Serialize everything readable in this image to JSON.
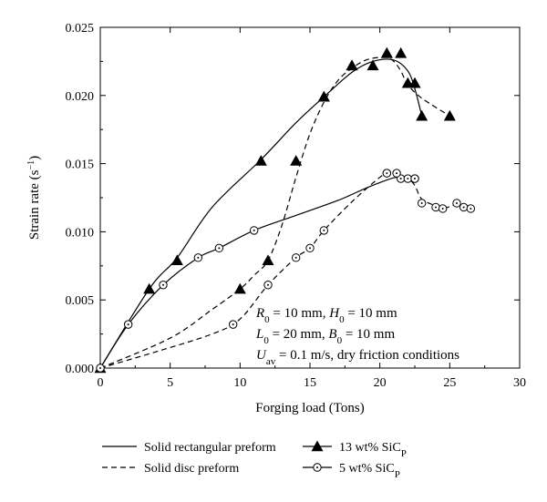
{
  "chart_data": {
    "type": "line",
    "xlabel": "Forging load (Tons)",
    "ylabel": "Strain rate (s",
    "ylabel_sup": "−1",
    "ylabel_close": ")",
    "xlim": [
      0,
      30
    ],
    "ylim": [
      0,
      0.025
    ],
    "xticks": [
      0,
      5,
      10,
      15,
      20,
      25,
      30
    ],
    "xtick_labels": [
      "0",
      "5",
      "10",
      "15",
      "20",
      "25",
      "30"
    ],
    "yticks": [
      0,
      0.005,
      0.01,
      0.015,
      0.02,
      0.025
    ],
    "ytick_labels": [
      "0.000",
      "0.005",
      "0.010",
      "0.015",
      "0.020",
      "0.025"
    ],
    "grid": false,
    "legend_position": "bottom",
    "markers": [
      {
        "name": "13 wt% SiC",
        "name_sub": "P",
        "marker": "filled-triangle",
        "x": [
          0,
          3.5,
          5.5,
          11.5,
          16,
          18,
          19.5,
          20.5,
          22,
          22.5,
          23,
          10,
          12,
          14,
          16,
          18,
          20.5,
          21.5,
          22,
          22.5,
          25
        ],
        "y": [
          0,
          0.0058,
          0.0079,
          0.0152,
          0.0199,
          0.0222,
          0.0222,
          0.0231,
          0.0209,
          0.0209,
          0.0185,
          0.0058,
          0.0079,
          0.0152,
          0.0199,
          0.0222,
          0.0231,
          0.0231,
          0.0209,
          0.0209,
          0.0185
        ]
      },
      {
        "name": "5 wt% SiC",
        "name_sub": "P",
        "marker": "open-circle-dot",
        "x": [
          0,
          2,
          4.5,
          7,
          8.5,
          11,
          20.5,
          21.5,
          22.5,
          9.5,
          12,
          14,
          15,
          16,
          20.5,
          21.2,
          22,
          22.5,
          23,
          24,
          24.5,
          25.5,
          26,
          26.5
        ],
        "y": [
          0,
          0.0032,
          0.0061,
          0.0081,
          0.0088,
          0.0101,
          0.0143,
          0.0139,
          0.0139,
          0.0032,
          0.0061,
          0.0081,
          0.0088,
          0.0101,
          0.0143,
          0.0143,
          0.0139,
          0.0139,
          0.0121,
          0.0118,
          0.0117,
          0.0121,
          0.0118,
          0.0117
        ]
      }
    ],
    "curves": [
      {
        "name": "Solid rectangular preform",
        "style": "solid",
        "x": [
          0,
          3.5,
          5.5,
          8,
          11.5,
          14,
          16,
          18,
          19.5,
          21,
          22,
          22.5,
          23
        ],
        "y": [
          0,
          0.0058,
          0.0081,
          0.0118,
          0.0153,
          0.018,
          0.0199,
          0.0217,
          0.0225,
          0.0226,
          0.0218,
          0.0205,
          0.0185
        ]
      },
      {
        "name": "Solid disc preform",
        "style": "dashed",
        "x": [
          0,
          5,
          8,
          10,
          11,
          12,
          13,
          14,
          15,
          16,
          17,
          18,
          19,
          20,
          20.5,
          21,
          21.5,
          22,
          23,
          25
        ],
        "y": [
          0,
          0.0022,
          0.0043,
          0.0058,
          0.0068,
          0.0079,
          0.0105,
          0.014,
          0.0172,
          0.0195,
          0.0211,
          0.022,
          0.0226,
          0.0228,
          0.0228,
          0.0225,
          0.0218,
          0.0208,
          0.0198,
          0.0185
        ]
      },
      {
        "name": "Solid rectangular preform",
        "style": "solid",
        "x": [
          0,
          2,
          4.5,
          7,
          8.5,
          11,
          14,
          17,
          19,
          20.5,
          21.2,
          22,
          22.5
        ],
        "y": [
          0,
          0.0032,
          0.0061,
          0.0081,
          0.0088,
          0.0101,
          0.0112,
          0.0123,
          0.0132,
          0.0138,
          0.014,
          0.014,
          0.0138
        ]
      },
      {
        "name": "Solid disc preform",
        "style": "dashed",
        "x": [
          0,
          4,
          8,
          10,
          12,
          14,
          15,
          16,
          18,
          20,
          20.5,
          21.2,
          22,
          22.5,
          23,
          24,
          24.5,
          25.5,
          26,
          26.5
        ],
        "y": [
          0,
          0.0012,
          0.0025,
          0.0036,
          0.0061,
          0.0081,
          0.0088,
          0.0101,
          0.0122,
          0.014,
          0.0142,
          0.0142,
          0.0139,
          0.0134,
          0.0124,
          0.0119,
          0.0117,
          0.012,
          0.0118,
          0.0117
        ]
      }
    ],
    "annotations": [
      {
        "parts": [
          [
            "R",
            ""
          ],
          [
            "0",
            "sub"
          ],
          [
            " = 10 mm, ",
            ""
          ],
          [
            "H",
            ""
          ],
          [
            "0",
            "sub"
          ],
          [
            " = 10 mm",
            ""
          ]
        ]
      },
      {
        "parts": [
          [
            "L",
            ""
          ],
          [
            "0",
            "sub"
          ],
          [
            " = 20 mm, ",
            ""
          ],
          [
            "B",
            ""
          ],
          [
            "0",
            "sub"
          ],
          [
            " = 10 mm",
            ""
          ]
        ]
      },
      {
        "parts": [
          [
            "U",
            ""
          ],
          [
            "av",
            "sub"
          ],
          [
            " = 0.1 m/s, dry friction conditions",
            ""
          ]
        ]
      }
    ],
    "legend": [
      {
        "label": "Solid rectangular preform",
        "kind": "line-solid"
      },
      {
        "label": "13 wt% SiC",
        "sub": "P",
        "kind": "triangle"
      },
      {
        "label": "Solid disc preform",
        "kind": "line-dashed"
      },
      {
        "label": "5 wt% SiC",
        "sub": "P",
        "kind": "circle"
      }
    ]
  }
}
